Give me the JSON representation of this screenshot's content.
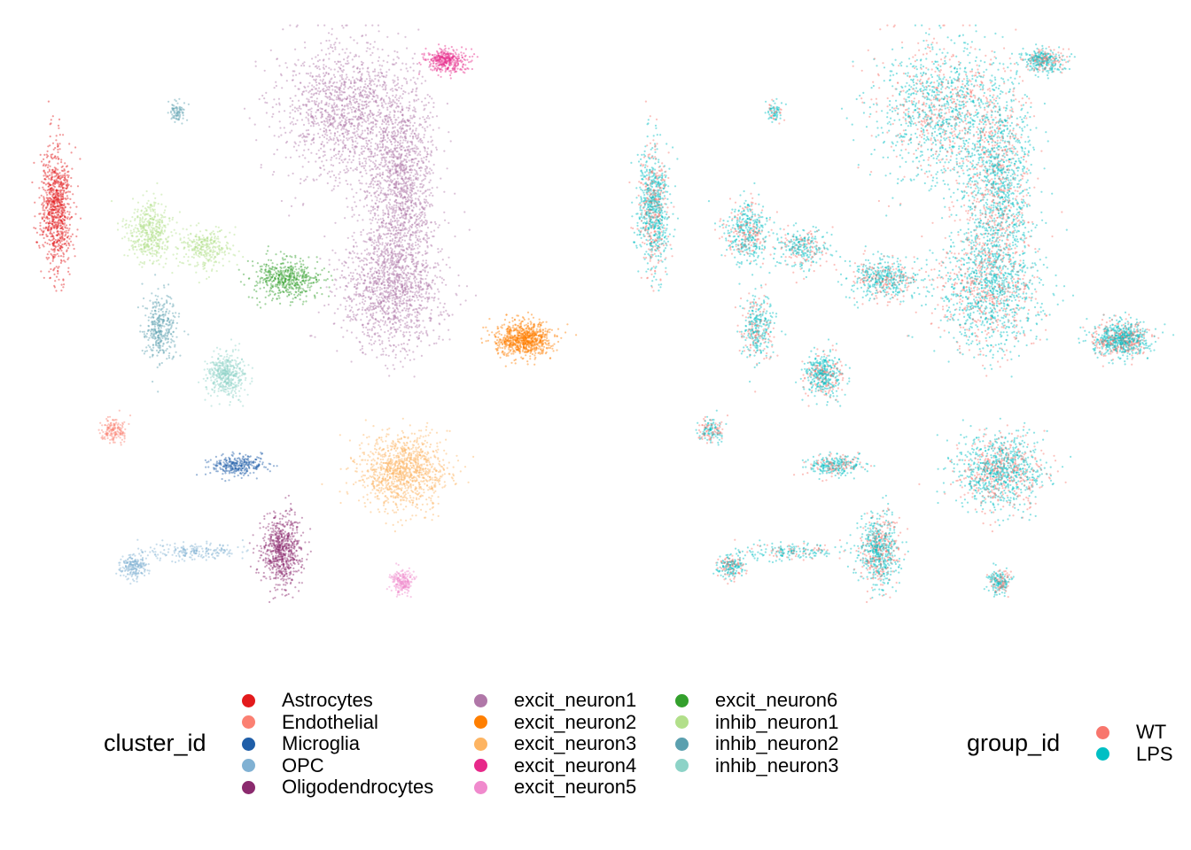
{
  "chart_data": [
    {
      "type": "scatter",
      "title": "",
      "xlabel": "",
      "ylabel": "",
      "grid": false,
      "color_by": "cluster_id",
      "series": [
        {
          "name": "Astrocytes",
          "color": "#E31A1C",
          "clusters": [
            {
              "x": 0.07,
              "y": 0.66,
              "sx": 0.014,
              "sy": 0.06,
              "n": 850
            }
          ]
        },
        {
          "name": "Endothelial",
          "color": "#FB8072",
          "clusters": [
            {
              "x": 0.175,
              "y": 0.22,
              "sx": 0.012,
              "sy": 0.012,
              "n": 160
            }
          ]
        },
        {
          "name": "Microglia",
          "color": "#1F5EA8",
          "clusters": [
            {
              "x": 0.4,
              "y": 0.15,
              "sx": 0.025,
              "sy": 0.01,
              "n": 300
            }
          ]
        },
        {
          "name": "OPC",
          "color": "#80B1D3",
          "clusters": [
            {
              "x": 0.21,
              "y": -0.05,
              "sx": 0.012,
              "sy": 0.012,
              "n": 200
            },
            {
              "x": 0.32,
              "y": -0.02,
              "sx": 0.05,
              "sy": 0.008,
              "n": 200
            }
          ]
        },
        {
          "name": "Oligodendrocytes",
          "color": "#8B2A6E",
          "clusters": [
            {
              "x": 0.48,
              "y": -0.02,
              "sx": 0.018,
              "sy": 0.035,
              "n": 700
            }
          ]
        },
        {
          "name": "excit_neuron1",
          "color": "#B077A8",
          "clusters": [
            {
              "x": 0.6,
              "y": 0.85,
              "sx": 0.06,
              "sy": 0.07,
              "n": 1400
            },
            {
              "x": 0.7,
              "y": 0.7,
              "sx": 0.03,
              "sy": 0.09,
              "n": 1300
            },
            {
              "x": 0.68,
              "y": 0.5,
              "sx": 0.045,
              "sy": 0.06,
              "n": 1300
            }
          ]
        },
        {
          "name": "excit_neuron2",
          "color": "#FF7F00",
          "clusters": [
            {
              "x": 0.92,
              "y": 0.4,
              "sx": 0.025,
              "sy": 0.017,
              "n": 800
            }
          ]
        },
        {
          "name": "excit_neuron3",
          "color": "#FDB462",
          "clusters": [
            {
              "x": 0.7,
              "y": 0.14,
              "sx": 0.04,
              "sy": 0.035,
              "n": 1100
            }
          ]
        },
        {
          "name": "excit_neuron4",
          "color": "#E7298A",
          "clusters": [
            {
              "x": 0.78,
              "y": 0.95,
              "sx": 0.02,
              "sy": 0.012,
              "n": 350
            }
          ]
        },
        {
          "name": "excit_neuron5",
          "color": "#F08ACD",
          "clusters": [
            {
              "x": 0.7,
              "y": -0.08,
              "sx": 0.01,
              "sy": 0.012,
              "n": 200
            }
          ]
        },
        {
          "name": "excit_neuron6",
          "color": "#33A02C",
          "clusters": [
            {
              "x": 0.49,
              "y": 0.52,
              "sx": 0.03,
              "sy": 0.02,
              "n": 500
            }
          ]
        },
        {
          "name": "inhib_neuron1",
          "color": "#B2DF8A",
          "clusters": [
            {
              "x": 0.24,
              "y": 0.61,
              "sx": 0.02,
              "sy": 0.03,
              "n": 450
            },
            {
              "x": 0.34,
              "y": 0.58,
              "sx": 0.025,
              "sy": 0.02,
              "n": 300
            }
          ]
        },
        {
          "name": "inhib_neuron2",
          "color": "#5BA0AF",
          "clusters": [
            {
              "x": 0.29,
              "y": 0.85,
              "sx": 0.008,
              "sy": 0.01,
              "n": 80
            },
            {
              "x": 0.26,
              "y": 0.42,
              "sx": 0.015,
              "sy": 0.035,
              "n": 350
            }
          ]
        },
        {
          "name": "inhib_neuron3",
          "color": "#8DD3C7",
          "clusters": [
            {
              "x": 0.38,
              "y": 0.33,
              "sx": 0.018,
              "sy": 0.022,
              "n": 450
            }
          ]
        }
      ]
    },
    {
      "type": "scatter",
      "title": "",
      "xlabel": "",
      "ylabel": "",
      "grid": false,
      "color_by": "group_id",
      "series": [
        {
          "name": "WT",
          "color": "#F8766D",
          "share": 0.35
        },
        {
          "name": "LPS",
          "color": "#00BFC4",
          "share": 0.65
        }
      ]
    }
  ],
  "legends": {
    "cluster": {
      "title": "cluster_id",
      "items": [
        {
          "label": "Astrocytes",
          "color": "#E31A1C"
        },
        {
          "label": "Endothelial",
          "color": "#FB8072"
        },
        {
          "label": "Microglia",
          "color": "#1F5EA8"
        },
        {
          "label": "OPC",
          "color": "#80B1D3"
        },
        {
          "label": "Oligodendrocytes",
          "color": "#8B2A6E"
        },
        {
          "label": "excit_neuron1",
          "color": "#B077A8"
        },
        {
          "label": "excit_neuron2",
          "color": "#FF7F00"
        },
        {
          "label": "excit_neuron3",
          "color": "#FDB462"
        },
        {
          "label": "excit_neuron4",
          "color": "#E7298A"
        },
        {
          "label": "excit_neuron5",
          "color": "#F08ACD"
        },
        {
          "label": "excit_neuron6",
          "color": "#33A02C"
        },
        {
          "label": "inhib_neuron1",
          "color": "#B2DF8A"
        },
        {
          "label": "inhib_neuron2",
          "color": "#5BA0AF"
        },
        {
          "label": "inhib_neuron3",
          "color": "#8DD3C7"
        }
      ]
    },
    "group": {
      "title": "group_id",
      "items": [
        {
          "label": "WT",
          "color": "#F8766D"
        },
        {
          "label": "LPS",
          "color": "#00BFC4"
        }
      ]
    }
  }
}
